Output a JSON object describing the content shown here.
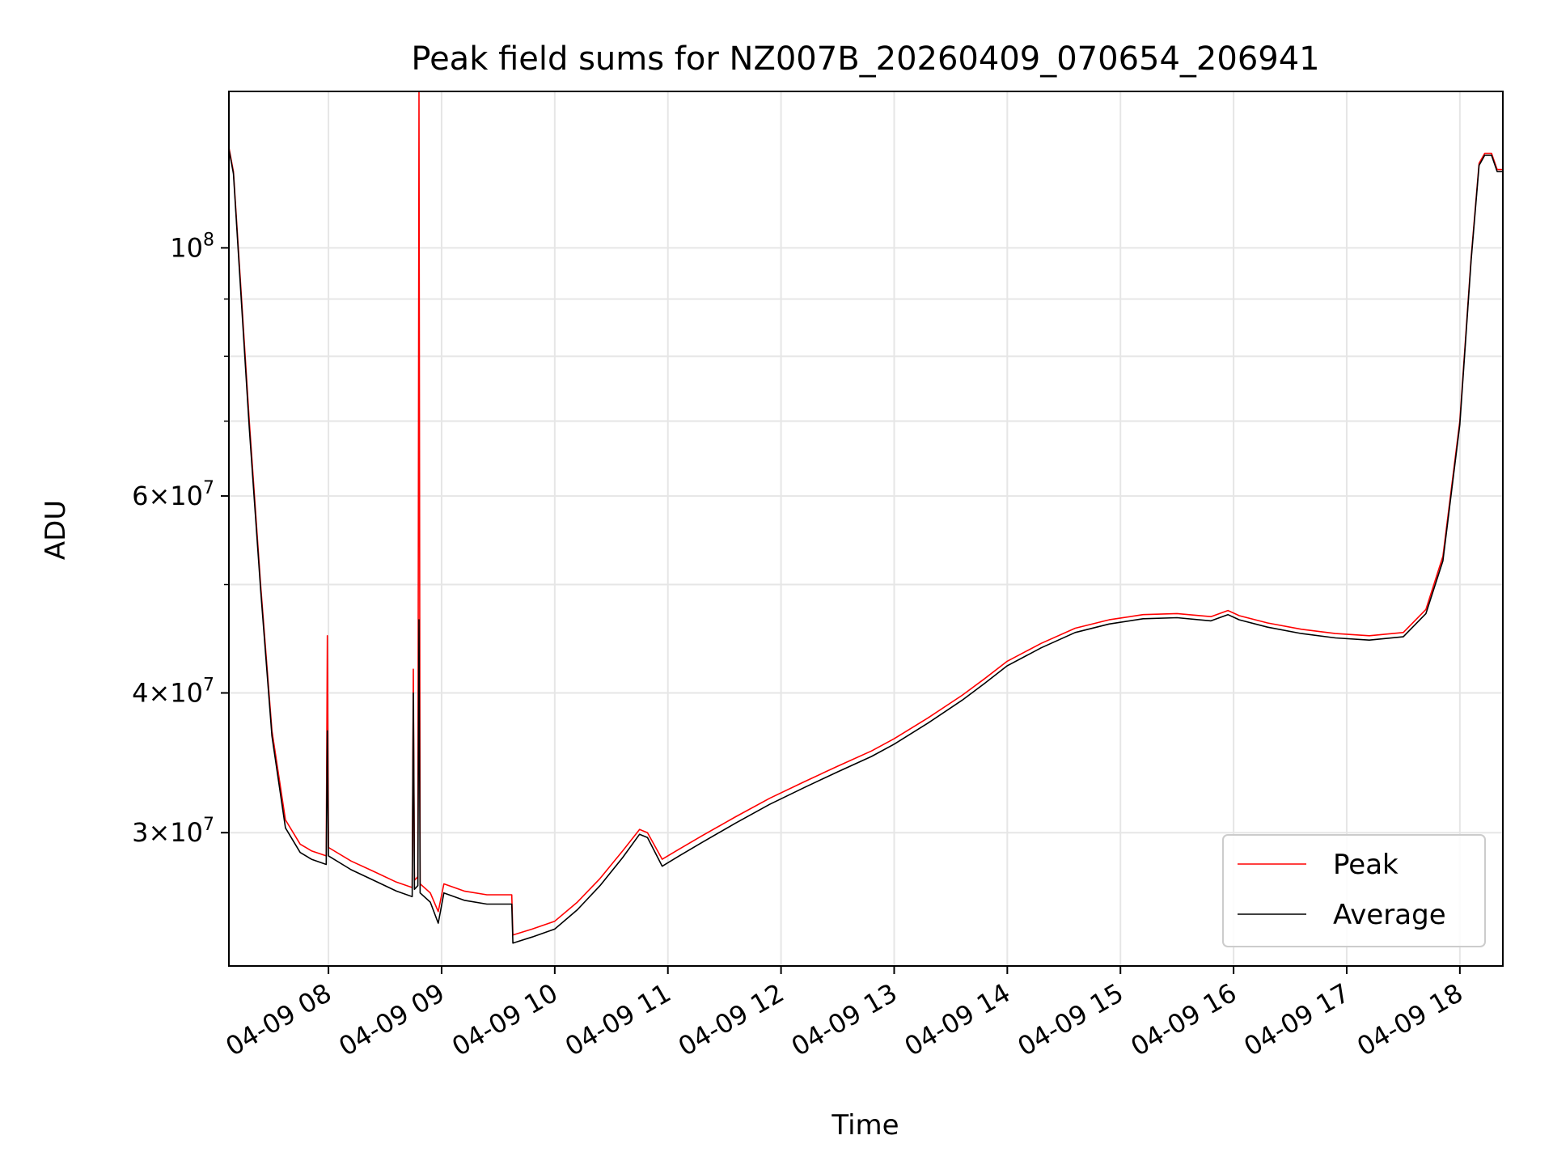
{
  "chart_data": {
    "type": "line",
    "title": "Peak field sums for NZ007B_20260409_070654_206941",
    "xlabel": "Time",
    "ylabel": "ADU",
    "yscale": "log",
    "xlim_hours": [
      7.12,
      18.38
    ],
    "ylim": [
      22800000,
      138000000
    ],
    "grid": true,
    "legend_position": "lower-right",
    "x_ticks": [
      {
        "label": "04-09 08",
        "hour": 8
      },
      {
        "label": "04-09 09",
        "hour": 9
      },
      {
        "label": "04-09 10",
        "hour": 10
      },
      {
        "label": "04-09 11",
        "hour": 11
      },
      {
        "label": "04-09 12",
        "hour": 12
      },
      {
        "label": "04-09 13",
        "hour": 13
      },
      {
        "label": "04-09 14",
        "hour": 14
      },
      {
        "label": "04-09 15",
        "hour": 15
      },
      {
        "label": "04-09 16",
        "hour": 16
      },
      {
        "label": "04-09 17",
        "hour": 17
      },
      {
        "label": "04-09 18",
        "hour": 18
      }
    ],
    "y_ticks": [
      {
        "value": 30000000,
        "mantissa": "3",
        "exponent": "7"
      },
      {
        "value": 40000000,
        "mantissa": "4",
        "exponent": "7"
      },
      {
        "value": 60000000,
        "mantissa": "6",
        "exponent": "7"
      },
      {
        "value": 100000000,
        "mantissa": "10",
        "exponent": "8"
      }
    ],
    "y_minor_ticks": [
      50000000,
      70000000,
      80000000,
      90000000
    ],
    "series": [
      {
        "name": "Peak",
        "color": "#ff0000",
        "points": [
          [
            7.12,
            123000000
          ],
          [
            7.16,
            117000000
          ],
          [
            7.22,
            94000000
          ],
          [
            7.3,
            70000000
          ],
          [
            7.4,
            50000000
          ],
          [
            7.5,
            37000000
          ],
          [
            7.62,
            30800000
          ],
          [
            7.75,
            29300000
          ],
          [
            7.85,
            28900000
          ],
          [
            7.98,
            28600000
          ],
          [
            7.99,
            45000000
          ],
          [
            8.0,
            29100000
          ],
          [
            8.2,
            28300000
          ],
          [
            8.4,
            27700000
          ],
          [
            8.6,
            27100000
          ],
          [
            8.74,
            26800000
          ],
          [
            8.75,
            42000000
          ],
          [
            8.76,
            27200000
          ],
          [
            8.79,
            27400000
          ],
          [
            8.8,
            138000000
          ],
          [
            8.81,
            27000000
          ],
          [
            8.9,
            26500000
          ],
          [
            8.97,
            25500000
          ],
          [
            9.02,
            27000000
          ],
          [
            9.2,
            26600000
          ],
          [
            9.4,
            26400000
          ],
          [
            9.62,
            26400000
          ],
          [
            9.63,
            24300000
          ],
          [
            9.8,
            24600000
          ],
          [
            10.0,
            25000000
          ],
          [
            10.2,
            26000000
          ],
          [
            10.4,
            27300000
          ],
          [
            10.6,
            28900000
          ],
          [
            10.75,
            30200000
          ],
          [
            10.82,
            30000000
          ],
          [
            10.95,
            28400000
          ],
          [
            11.1,
            29000000
          ],
          [
            11.3,
            29800000
          ],
          [
            11.6,
            31000000
          ],
          [
            11.9,
            32200000
          ],
          [
            12.2,
            33300000
          ],
          [
            12.5,
            34400000
          ],
          [
            12.8,
            35500000
          ],
          [
            13.0,
            36400000
          ],
          [
            13.3,
            38000000
          ],
          [
            13.6,
            39800000
          ],
          [
            13.8,
            41200000
          ],
          [
            14.0,
            42700000
          ],
          [
            14.3,
            44300000
          ],
          [
            14.6,
            45700000
          ],
          [
            14.9,
            46500000
          ],
          [
            15.2,
            47000000
          ],
          [
            15.5,
            47100000
          ],
          [
            15.8,
            46800000
          ],
          [
            15.95,
            47400000
          ],
          [
            16.05,
            46900000
          ],
          [
            16.3,
            46200000
          ],
          [
            16.6,
            45600000
          ],
          [
            16.9,
            45200000
          ],
          [
            17.2,
            45000000
          ],
          [
            17.5,
            45300000
          ],
          [
            17.7,
            47500000
          ],
          [
            17.85,
            53000000
          ],
          [
            18.0,
            70000000
          ],
          [
            18.1,
            98000000
          ],
          [
            18.17,
            119000000
          ],
          [
            18.22,
            121500000
          ],
          [
            18.28,
            121500000
          ],
          [
            18.33,
            117500000
          ],
          [
            18.38,
            117500000
          ]
        ]
      },
      {
        "name": "Average",
        "color": "#000000",
        "points": [
          [
            7.12,
            122500000
          ],
          [
            7.16,
            116500000
          ],
          [
            7.22,
            93000000
          ],
          [
            7.3,
            69000000
          ],
          [
            7.4,
            49500000
          ],
          [
            7.5,
            36600000
          ],
          [
            7.62,
            30300000
          ],
          [
            7.75,
            28800000
          ],
          [
            7.85,
            28400000
          ],
          [
            7.98,
            28100000
          ],
          [
            7.99,
            37000000
          ],
          [
            8.0,
            28600000
          ],
          [
            8.2,
            27800000
          ],
          [
            8.4,
            27200000
          ],
          [
            8.6,
            26600000
          ],
          [
            8.74,
            26300000
          ],
          [
            8.75,
            40000000
          ],
          [
            8.76,
            26700000
          ],
          [
            8.79,
            26900000
          ],
          [
            8.8,
            46500000
          ],
          [
            8.81,
            26500000
          ],
          [
            8.9,
            26000000
          ],
          [
            8.97,
            24900000
          ],
          [
            9.02,
            26500000
          ],
          [
            9.2,
            26100000
          ],
          [
            9.4,
            25900000
          ],
          [
            9.62,
            25900000
          ],
          [
            9.63,
            23900000
          ],
          [
            9.8,
            24200000
          ],
          [
            10.0,
            24600000
          ],
          [
            10.2,
            25600000
          ],
          [
            10.4,
            26900000
          ],
          [
            10.6,
            28500000
          ],
          [
            10.75,
            29900000
          ],
          [
            10.82,
            29700000
          ],
          [
            10.95,
            28000000
          ],
          [
            11.1,
            28600000
          ],
          [
            11.3,
            29400000
          ],
          [
            11.6,
            30600000
          ],
          [
            11.9,
            31800000
          ],
          [
            12.2,
            32900000
          ],
          [
            12.5,
            34000000
          ],
          [
            12.8,
            35100000
          ],
          [
            13.0,
            36000000
          ],
          [
            13.3,
            37600000
          ],
          [
            13.6,
            39400000
          ],
          [
            13.8,
            40800000
          ],
          [
            14.0,
            42300000
          ],
          [
            14.3,
            43900000
          ],
          [
            14.6,
            45300000
          ],
          [
            14.9,
            46100000
          ],
          [
            15.2,
            46600000
          ],
          [
            15.5,
            46700000
          ],
          [
            15.8,
            46400000
          ],
          [
            15.95,
            47000000
          ],
          [
            16.05,
            46500000
          ],
          [
            16.3,
            45800000
          ],
          [
            16.6,
            45200000
          ],
          [
            16.9,
            44800000
          ],
          [
            17.2,
            44600000
          ],
          [
            17.5,
            44900000
          ],
          [
            17.7,
            47100000
          ],
          [
            17.85,
            52500000
          ],
          [
            18.0,
            69500000
          ],
          [
            18.1,
            97500000
          ],
          [
            18.17,
            118500000
          ],
          [
            18.22,
            121000000
          ],
          [
            18.28,
            121000000
          ],
          [
            18.33,
            117000000
          ],
          [
            18.38,
            117000000
          ]
        ]
      }
    ]
  }
}
